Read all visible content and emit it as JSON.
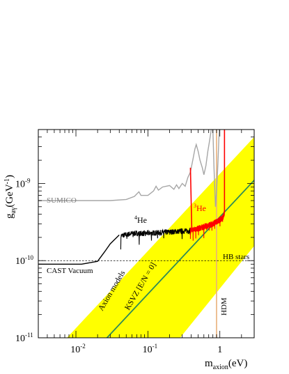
{
  "colors": {
    "band": "#ffff00",
    "ksvz": "#2e8b57",
    "sumico": "#a6a6a6",
    "cast4he": "#000000",
    "cast3he": "#ff0000",
    "hdm": "#e8b07a",
    "hb": "#000000"
  },
  "chart_data": {
    "type": "line",
    "xscale": "log",
    "yscale": "log",
    "xlim": [
      0.003,
      3.0
    ],
    "ylim": [
      1e-11,
      5e-09
    ],
    "xlabel": {
      "main": "m",
      "sub": "axion",
      "unit": "(eV)"
    },
    "ylabel": {
      "main": "g",
      "sub": "aγ",
      "unit": "(GeV",
      "sup": "-1",
      "close": ")"
    },
    "x_ticks": [
      {
        "value": 0.01,
        "base": "10",
        "exp": "-2"
      },
      {
        "value": 0.1,
        "base": "10",
        "exp": "-1"
      },
      {
        "value": 1,
        "base": "1",
        "exp": ""
      }
    ],
    "y_ticks": [
      {
        "value": 1e-11,
        "base": "10",
        "exp": "-11"
      },
      {
        "value": 1e-10,
        "base": "10",
        "exp": "-10"
      },
      {
        "value": 1e-09,
        "base": "10",
        "exp": "-9"
      }
    ],
    "labels": {
      "sumico": "SUMICO",
      "he4": {
        "sup": "4",
        "text": "He"
      },
      "he3": {
        "sup": "3",
        "text": "He"
      },
      "cast_vacuum": "CAST Vacuum",
      "hb_stars": "HB stars",
      "axion_models": "Axion models",
      "ksvz": "KSVZ [E/N = 0]",
      "hdm": "HDM"
    },
    "hb_stars": {
      "g": 1e-10
    },
    "hdm": {
      "m": 0.9
    },
    "ksvz_line": [
      [
        0.027,
        1e-11
      ],
      [
        3.0,
        1.1e-09
      ]
    ],
    "axion_band": [
      [
        0.0075,
        1e-11
      ],
      [
        3.0,
        4e-09
      ],
      [
        3.0,
        1.55e-10
      ],
      [
        0.28,
        1e-11
      ]
    ],
    "cast_vacuum": [
      [
        0.003,
        9e-11
      ],
      [
        0.012,
        9e-11
      ],
      [
        0.02,
        9.8e-11
      ],
      [
        0.025,
        1.3e-10
      ],
      [
        0.03,
        1.65e-10
      ],
      [
        0.04,
        2.15e-10
      ]
    ],
    "cast_4he_envelope": [
      [
        0.042,
        2.1e-10
      ],
      [
        0.06,
        2.25e-10
      ],
      [
        0.09,
        2.25e-10
      ],
      [
        0.14,
        2.3e-10
      ],
      [
        0.2,
        2.35e-10
      ],
      [
        0.28,
        2.4e-10
      ],
      [
        0.39,
        2.45e-10
      ]
    ],
    "cast_3he_envelope": [
      [
        0.39,
        2.45e-10
      ],
      [
        0.5,
        2.6e-10
      ],
      [
        0.65,
        2.8e-10
      ],
      [
        0.8,
        3e-10
      ],
      [
        1.0,
        3.4e-10
      ],
      [
        1.1,
        3.6e-10
      ],
      [
        1.16,
        4.2e-10
      ]
    ],
    "cast_3he_edges": [
      [
        0.39,
        1.6e-09
      ],
      [
        1.16,
        5e-09
      ]
    ],
    "sumico_curve": [
      [
        0.003,
        6e-10
      ],
      [
        0.03,
        6e-10
      ],
      [
        0.05,
        6.2e-10
      ],
      [
        0.065,
        6.8e-10
      ],
      [
        0.075,
        7.8e-10
      ],
      [
        0.08,
        7e-10
      ],
      [
        0.1,
        7e-10
      ],
      [
        0.12,
        8e-10
      ],
      [
        0.13,
        9.2e-10
      ],
      [
        0.14,
        8.2e-10
      ],
      [
        0.16,
        9e-10
      ],
      [
        0.2,
        9.4e-10
      ],
      [
        0.23,
        8.4e-10
      ],
      [
        0.25,
        9.6e-10
      ],
      [
        0.27,
        8.6e-10
      ],
      [
        0.3,
        1e-09
      ],
      [
        0.33,
        9.2e-10
      ],
      [
        0.36,
        1.2e-09
      ],
      [
        0.39,
        1.4e-09
      ],
      [
        0.42,
        2e-09
      ],
      [
        0.45,
        2.8e-09
      ],
      [
        0.47,
        3.2e-09
      ],
      [
        0.5,
        2.6e-09
      ],
      [
        0.53,
        2e-09
      ],
      [
        0.57,
        1.6e-09
      ],
      [
        0.6,
        1.3e-09
      ],
      [
        0.64,
        1.7e-09
      ],
      [
        0.68,
        2.6e-09
      ],
      [
        0.72,
        3.6e-09
      ],
      [
        0.76,
        5e-09
      ]
    ],
    "sumico_spike": [
      [
        0.8,
        5e-09
      ],
      [
        0.83,
        1.6e-09
      ],
      [
        0.87,
        5e-10
      ],
      [
        0.9,
        8e-10
      ],
      [
        0.94,
        1.8e-09
      ],
      [
        0.98,
        5e-09
      ]
    ]
  }
}
